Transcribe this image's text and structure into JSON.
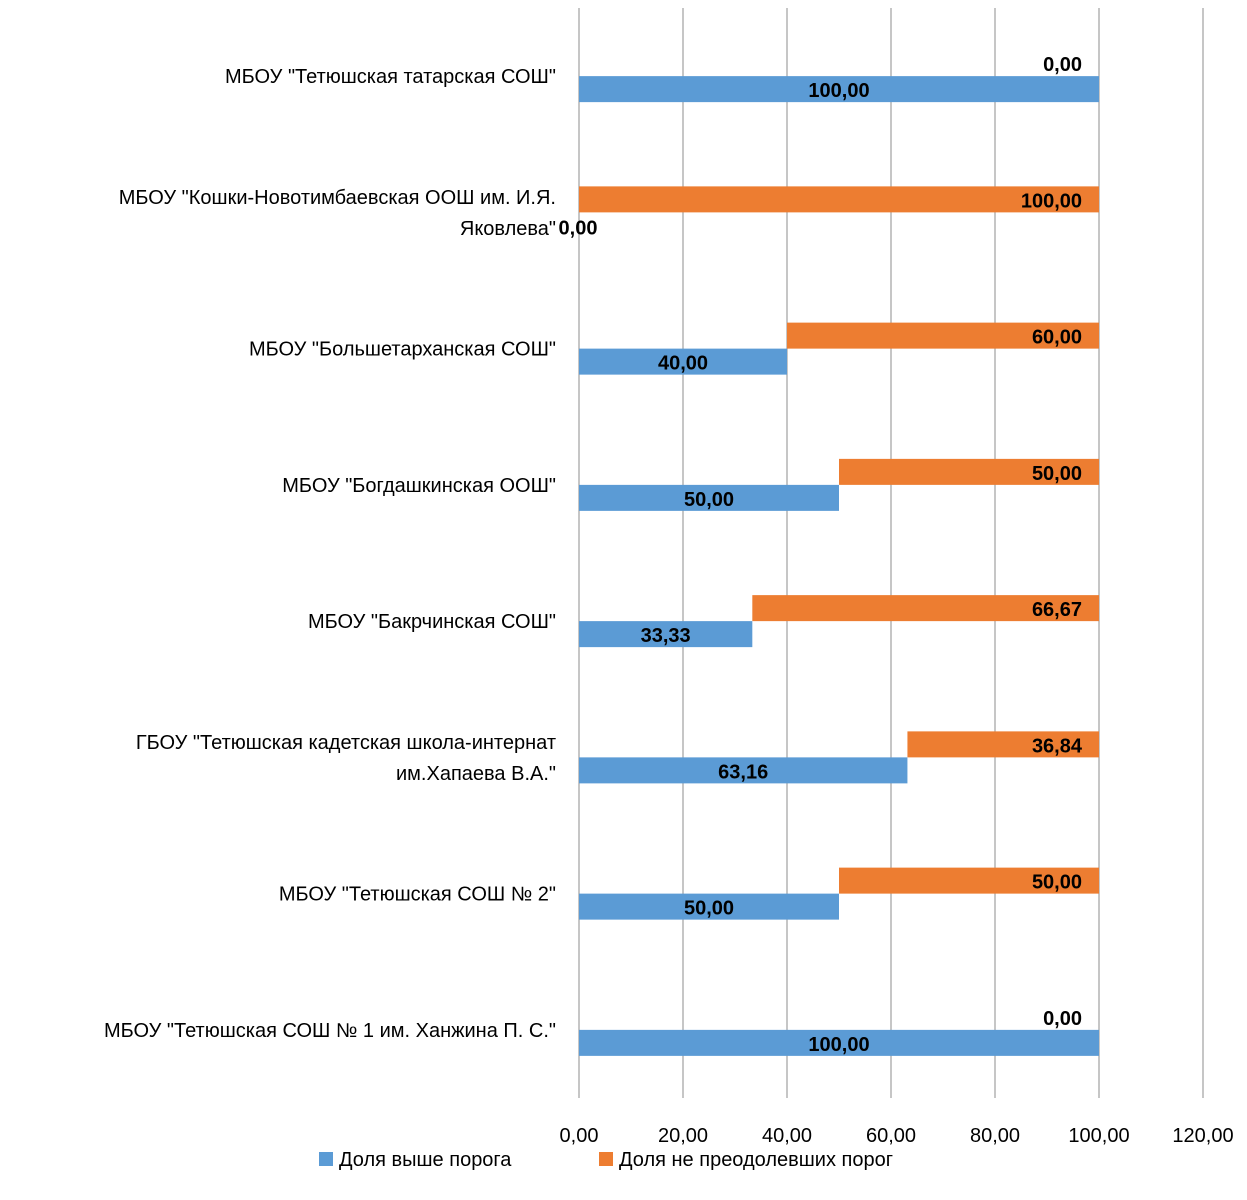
{
  "chart_data": {
    "type": "bar",
    "orientation": "horizontal",
    "categories": [
      [
        "МБОУ \"Тетюшская татарская СОШ\""
      ],
      [
        "МБОУ \"Кошки-Новотимбаевская ООШ им. И.Я.",
        "Яковлева\""
      ],
      [
        "МБОУ \"Большетарханская СОШ\""
      ],
      [
        "МБОУ \"Богдашкинская ООШ\""
      ],
      [
        "МБОУ \"Бакрчинская СОШ\""
      ],
      [
        "ГБОУ \"Тетюшская кадетская школа-интернат",
        "им.Хапаева В.А.\""
      ],
      [
        "МБОУ \"Тетюшская СОШ № 2\""
      ],
      [
        "МБОУ \"Тетюшская СОШ № 1 им. Ханжина П. С.\""
      ]
    ],
    "series": [
      {
        "name": "Доля выше порога",
        "color": "#5b9bd5",
        "values": [
          100,
          0,
          40,
          50,
          33.33,
          63.16,
          50,
          100
        ],
        "labels": [
          "100,00",
          "0,00",
          "40,00",
          "50,00",
          "33,33",
          "63,16",
          "50,00",
          "100,00"
        ]
      },
      {
        "name": "Доля не преодолевших порог",
        "color": "#ed7d31",
        "values": [
          0,
          100,
          60,
          50,
          66.67,
          36.84,
          50,
          0
        ],
        "labels": [
          "0,00",
          "100,00",
          "60,00",
          "50,00",
          "66,67",
          "36,84",
          "50,00",
          "0,00"
        ]
      }
    ],
    "xlim": [
      0,
      120
    ],
    "x_ticks": [
      0,
      20,
      40,
      60,
      80,
      100,
      120
    ],
    "x_tick_labels": [
      "0,00",
      "20,00",
      "40,00",
      "60,00",
      "80,00",
      "100,00",
      "120,00"
    ],
    "grid": "vertical",
    "legend_position": "bottom",
    "title": "",
    "xlabel": "",
    "ylabel": ""
  }
}
